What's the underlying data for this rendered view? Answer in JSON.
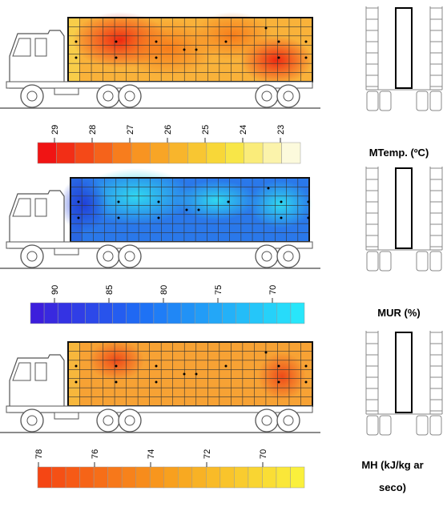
{
  "panels": [
    {
      "label": "MTemp. (ºC)",
      "ticks": [
        29,
        28,
        27,
        26,
        25,
        24,
        23
      ]
    },
    {
      "label": "MUR (%)",
      "ticks": [
        90,
        85,
        80,
        75,
        70
      ]
    },
    {
      "label": "MH (kJ/kg ar seco)",
      "ticks": [
        78,
        76,
        74,
        72,
        70
      ]
    }
  ]
}
